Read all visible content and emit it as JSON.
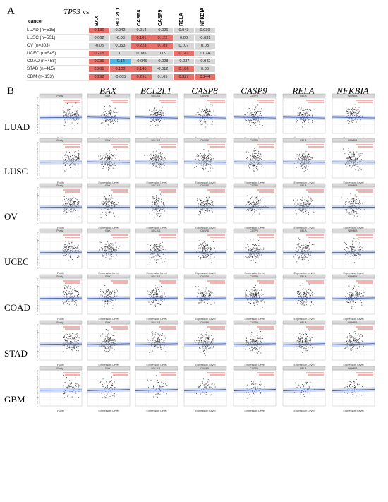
{
  "panel_a": {
    "letter": "A",
    "title_gene": "TP53",
    "title_vs": "vs",
    "row_header": "cancer",
    "columns": [
      "BAX",
      "BCL2L1",
      "CASP8",
      "CASP9",
      "RELA",
      "NFKBIA"
    ],
    "rows": [
      {
        "label": "LUAD (n=515)",
        "values": [
          "0.136",
          "0.042",
          "0.014",
          "-0.026",
          "0.043",
          "0.039"
        ],
        "colors": [
          "#e8706a",
          "#d6d6d6",
          "#d6d6d6",
          "#d6d6d6",
          "#d6d6d6",
          "#d6d6d6"
        ]
      },
      {
        "label": "LUSC (n=501)",
        "values": [
          "0.062",
          "-0.03",
          "0.101",
          "0.122",
          "0.08",
          "-0.031"
        ],
        "colors": [
          "#d6d6d6",
          "#d6d6d6",
          "#e8706a",
          "#e8706a",
          "#d6d6d6",
          "#d6d6d6"
        ]
      },
      {
        "label": "OV (n=303)",
        "values": [
          "-0.08",
          "0.053",
          "0.223",
          "0.189",
          "0.107",
          "0.03"
        ],
        "colors": [
          "#d6d6d6",
          "#d6d6d6",
          "#e8706a",
          "#e8706a",
          "#d6d6d6",
          "#d6d6d6"
        ]
      },
      {
        "label": "UCEC (n=545)",
        "values": [
          "0.215",
          "0",
          "0.085",
          "0.09",
          "0.141",
          "0.074"
        ],
        "colors": [
          "#e8706a",
          "#d6d6d6",
          "#d6d6d6",
          "#d6d6d6",
          "#e8706a",
          "#d6d6d6"
        ]
      },
      {
        "label": "COAD (n=458)",
        "values": [
          "0.236",
          "-0.14",
          "-0.045",
          "-0.028",
          "-0.037",
          "-0.042"
        ],
        "colors": [
          "#e8706a",
          "#4fb6e3",
          "#d6d6d6",
          "#d6d6d6",
          "#d6d6d6",
          "#d6d6d6"
        ]
      },
      {
        "label": "STAD (n=415)",
        "values": [
          "0.261",
          "0.103",
          "0.146",
          "-0.012",
          "0.186",
          "0.06"
        ],
        "colors": [
          "#e8706a",
          "#e8706a",
          "#e8706a",
          "#d6d6d6",
          "#e8706a",
          "#d6d6d6"
        ]
      },
      {
        "label": "GBM (n=153)",
        "values": [
          "0.292",
          "-0.005",
          "0.291",
          "0.105",
          "0.327",
          "0.244"
        ],
        "colors": [
          "#e8706a",
          "#d6d6d6",
          "#e8706a",
          "#d6d6d6",
          "#e8706a",
          "#e8706a"
        ]
      }
    ]
  },
  "panel_b": {
    "letter": "B",
    "gene_headers": [
      "BAX",
      "BCL2L1",
      "CASP8",
      "CASP9",
      "RELA",
      "NFKBIA"
    ],
    "cancers": [
      "LUAD",
      "LUSC",
      "OV",
      "UCEC",
      "COAD",
      "STAD",
      "GBM"
    ],
    "strip_labels": [
      "Purity",
      "BAX",
      "BCL2L1",
      "CASP8",
      "CASP9",
      "RELA",
      "NFKBIA"
    ],
    "x_labels": [
      "Purity",
      "Expression Level",
      "Expression Level",
      "Expression Level",
      "Expression Level",
      "Expression Level",
      "Expression Level"
    ],
    "y_label": "TP53 Expression Level (log2 TPM)",
    "scatter_color": "#222222",
    "fit_color": "#3b5bb5",
    "annotation_color": "#e0322c"
  }
}
